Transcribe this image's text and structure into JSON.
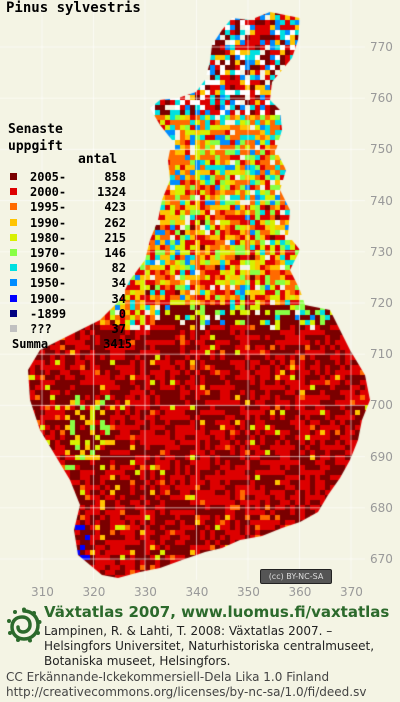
{
  "title": "Pinus sylvestris",
  "legend": {
    "title": "Senaste\nuppgift",
    "count_header": "antal",
    "rows": [
      {
        "label": "2005-",
        "count": "858",
        "color": "#7a0000"
      },
      {
        "label": "2000-",
        "count": "1324",
        "color": "#dd0000"
      },
      {
        "label": "1995-",
        "count": "423",
        "color": "#ff6a00"
      },
      {
        "label": "1990-",
        "count": "262",
        "color": "#ffc400"
      },
      {
        "label": "1980-",
        "count": "215",
        "color": "#d8f000"
      },
      {
        "label": "1970-",
        "count": "146",
        "color": "#88ff44"
      },
      {
        "label": "1960-",
        "count": "82",
        "color": "#00e0e0"
      },
      {
        "label": "1950-",
        "count": "34",
        "color": "#008cff"
      },
      {
        "label": "1900-",
        "count": "34",
        "color": "#0000ff"
      },
      {
        "label": "-1899",
        "count": "0",
        "color": "#000080"
      },
      {
        "label": "???",
        "count": "37",
        "color": "#c0c0c0"
      }
    ],
    "summa_label": "Summa",
    "summa_value": "3415"
  },
  "y_axis_labels": [
    "770",
    "760",
    "750",
    "740",
    "730",
    "720",
    "710",
    "700",
    "690",
    "680",
    "670"
  ],
  "x_axis_labels": [
    "310",
    "320",
    "330",
    "340",
    "350",
    "360",
    "370"
  ],
  "cc_badge": "(cc) BY-NC-SA",
  "footer": {
    "atlas_title": "Växtatlas 2007, www.luomus.fi/vaxtatlas",
    "citation": "Lampinen, R. & Lahti, T. 2008: Växtatlas 2007. –\nHelsingfors Universitet, Naturhistoriska centralmuseet,\nBotaniska museet, Helsingfors.",
    "license_line1": "CC Erkännande-Ickekommersiell-Dela Lika 1.0 Finland",
    "license_line2": "http://creativecommons.org/licenses/by-nc-sa/1.0/fi/deed.sv"
  },
  "colors": {
    "background": "#f4f4e4",
    "grid": "#ffffff",
    "atlas_title": "#2c6a2c"
  }
}
